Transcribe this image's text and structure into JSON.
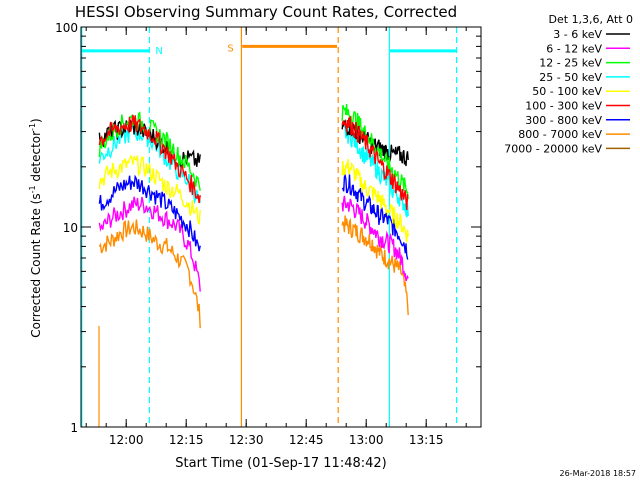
{
  "chart_data": {
    "type": "line",
    "title": "HESSI Observing Summary Count Rates, Corrected",
    "xlabel": "Start Time (01-Sep-17 11:48:42)",
    "ylabel_main": "Corrected Count Rate (s",
    "ylabel_sup1": "-1",
    "ylabel_mid": " detector",
    "ylabel_sup2": "-1",
    "ylabel_end": ")",
    "yscale": "log",
    "ylim": [
      1,
      100
    ],
    "xlim_minutes_from_start": [
      0,
      100
    ],
    "x_ticks": [
      {
        "label": "12:00",
        "m": 11.3
      },
      {
        "label": "12:15",
        "m": 26.3
      },
      {
        "label": "12:30",
        "m": 41.3
      },
      {
        "label": "12:45",
        "m": 56.3
      },
      {
        "label": "13:00",
        "m": 71.3
      },
      {
        "label": "13:15",
        "m": 86.3
      }
    ],
    "y_ticks": [
      {
        "label": "1",
        "v": 1
      },
      {
        "label": "10",
        "v": 10
      },
      {
        "label": "100",
        "v": 100
      }
    ],
    "legend_header": "Det 1,3,6, Att 0",
    "legend_position": "top-right",
    "timestamp": "26-Mar-2018 18:57",
    "series": [
      {
        "name": "3 - 6 keV",
        "color": "#000000",
        "seg1": [
          27,
          30,
          31,
          32,
          30,
          28,
          25,
          22,
          22,
          21
        ],
        "seg2": [
          32,
          32,
          30,
          28,
          26,
          25,
          24,
          23,
          23,
          22
        ]
      },
      {
        "name": "6 - 12 keV",
        "color": "#ff00ff",
        "seg1": [
          9.5,
          11,
          12,
          13,
          13,
          12,
          11,
          10,
          8,
          5
        ],
        "seg2": [
          13,
          13,
          12,
          11,
          10,
          9,
          8.5,
          8,
          7,
          5.5
        ]
      },
      {
        "name": "12 - 25 keV",
        "color": "#00ff00",
        "seg1": [
          25,
          29,
          33,
          35,
          33,
          30,
          27,
          23,
          20,
          16
        ],
        "seg2": [
          38,
          37,
          34,
          30,
          27,
          24,
          21,
          19,
          17,
          15
        ]
      },
      {
        "name": "25 - 50 keV",
        "color": "#00ffff",
        "seg1": [
          22,
          25,
          28,
          30,
          29,
          26,
          22,
          19,
          17,
          13
        ],
        "seg2": [
          30,
          29,
          26,
          23,
          21,
          19,
          17,
          15,
          14,
          12
        ]
      },
      {
        "name": "50 - 100 keV",
        "color": "#ffff00",
        "seg1": [
          17,
          19,
          20,
          21,
          20,
          18,
          16,
          15,
          13,
          11
        ],
        "seg2": [
          20,
          20,
          18,
          16,
          15,
          14,
          12.5,
          11.5,
          10.5,
          9
        ]
      },
      {
        "name": "100 - 300 keV",
        "color": "#ff0000",
        "seg1": [
          27,
          30,
          32,
          33,
          31,
          28,
          24,
          20,
          17,
          14
        ],
        "seg2": [
          34,
          33,
          30,
          27,
          24,
          21,
          19,
          17,
          15,
          13
        ]
      },
      {
        "name": "300 - 800 keV",
        "color": "#0000ff",
        "seg1": [
          13,
          14.5,
          16,
          17,
          16,
          14.5,
          13,
          11.5,
          10,
          7.5
        ],
        "seg2": [
          17,
          16.5,
          15,
          13.5,
          12.5,
          11.5,
          11,
          10,
          9,
          7.5
        ]
      },
      {
        "name": "800 - 7000 keV",
        "color": "#ff8c00",
        "seg1": [
          8,
          8.5,
          9.5,
          10,
          9.5,
          8.5,
          8,
          7,
          6,
          3.5
        ],
        "seg2": [
          10.5,
          10,
          9.5,
          9,
          8.5,
          7.5,
          7,
          6.5,
          6,
          4
        ]
      },
      {
        "name": "7000 - 20000 keV",
        "color": "#a06000",
        "seg1": [],
        "seg2": []
      }
    ],
    "segment_times": {
      "seg1": [
        4.6,
        29.8
      ],
      "seg2": [
        65.3,
        81.8
      ]
    },
    "annotations": [
      {
        "label": "N",
        "color": "#00ffff",
        "bar": [
          0,
          17
        ],
        "level": 76,
        "dashed_at": [
          17.1,
          93.9
        ],
        "solid_at": [
          0.2,
          77.1
        ]
      },
      {
        "label": "S",
        "color": "#ff8c00",
        "bar": [
          40.3,
          64
        ],
        "level": 80,
        "dashed_at": [
          64.3
        ],
        "solid_at": [
          40.1
        ]
      }
    ]
  }
}
